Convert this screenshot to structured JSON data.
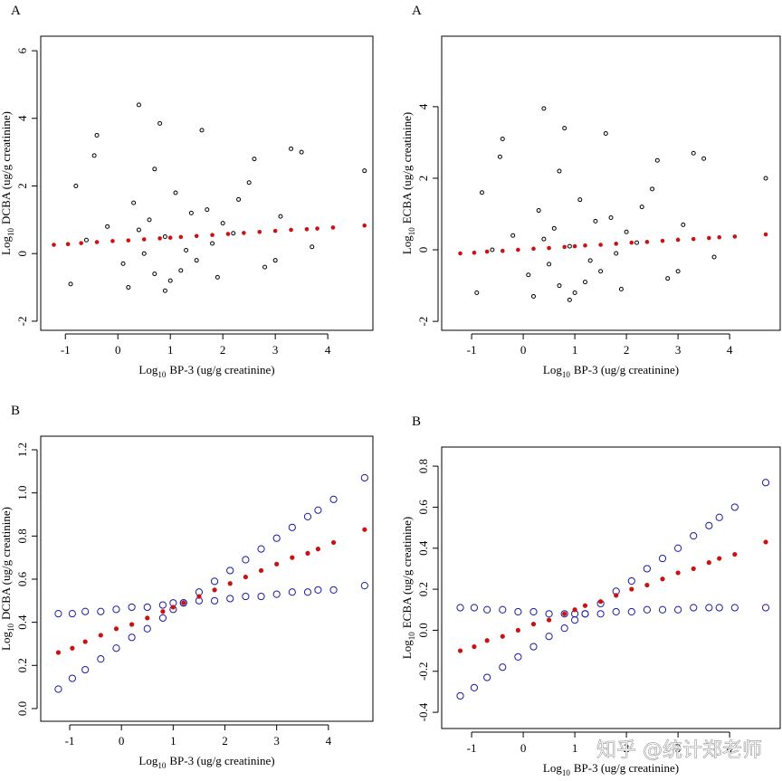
{
  "chart_data": [
    {
      "type": "scatter",
      "panel_label": "A",
      "xlabel": [
        "Log",
        "10",
        "BP-3 (ug/g creatinine)"
      ],
      "ylabel": [
        "Log",
        "10",
        "DCBA (ug/g creatinine)"
      ],
      "xlim": [
        -1.47,
        4.86
      ],
      "ylim": [
        -2.27,
        6.43
      ],
      "xticks": [
        -1,
        0,
        1,
        2,
        3,
        4
      ],
      "yticks": [
        -2,
        0,
        2,
        4,
        6
      ],
      "series": [
        {
          "color": "#000000",
          "marker": "open",
          "x": [
            0.4,
            0.8,
            0.7,
            -0.4,
            -0.45,
            1.6,
            2.6,
            3.3,
            3.5,
            4.7,
            -0.8,
            0.3,
            1.1,
            1.4,
            2.0,
            2.3,
            0.9,
            0.5,
            1.2,
            1.8,
            0.1,
            -0.2,
            0.6,
            1.0,
            1.5,
            2.2,
            2.8,
            3.1,
            3.7,
            -0.9,
            -0.6,
            0.2,
            0.7,
            1.3,
            1.9,
            2.5,
            3.0,
            0.4,
            1.7,
            0.9
          ],
          "values": [
            4.4,
            3.85,
            2.5,
            3.5,
            2.9,
            3.65,
            2.8,
            3.1,
            3.0,
            2.45,
            2.0,
            1.5,
            1.8,
            1.2,
            0.9,
            1.6,
            0.5,
            0.0,
            -0.5,
            0.3,
            -0.3,
            0.8,
            1.0,
            -0.8,
            -0.2,
            0.6,
            -0.4,
            1.1,
            0.2,
            -0.9,
            0.4,
            -1.0,
            -0.6,
            0.1,
            -0.7,
            2.1,
            -0.2,
            0.7,
            1.3,
            -1.1
          ]
        },
        {
          "color": "#cc1111",
          "marker": "filled",
          "x": [
            -1.22,
            -0.95,
            -0.7,
            -0.4,
            -0.1,
            0.2,
            0.5,
            0.8,
            1.0,
            1.2,
            1.5,
            1.8,
            2.1,
            2.4,
            2.7,
            3.0,
            3.3,
            3.6,
            3.8,
            4.1,
            4.7
          ],
          "values": [
            0.26,
            0.28,
            0.31,
            0.34,
            0.37,
            0.39,
            0.42,
            0.45,
            0.47,
            0.49,
            0.52,
            0.55,
            0.58,
            0.61,
            0.64,
            0.67,
            0.7,
            0.72,
            0.74,
            0.77,
            0.83
          ]
        }
      ]
    },
    {
      "type": "scatter",
      "panel_label": "A",
      "xlabel": [
        "Log",
        "10",
        "BP-3 (ug/g creatinine)"
      ],
      "ylabel": [
        "Log",
        "10",
        "ECBA (ug/g creatinine)"
      ],
      "xlim": [
        -1.58,
        4.98
      ],
      "ylim": [
        -2.25,
        5.97
      ],
      "xticks": [
        -1,
        0,
        1,
        2,
        3,
        4
      ],
      "yticks": [
        -2,
        0,
        2,
        4
      ],
      "series": [
        {
          "color": "#000000",
          "marker": "open",
          "x": [
            0.4,
            0.8,
            0.7,
            -0.4,
            -0.45,
            1.6,
            2.6,
            3.3,
            3.5,
            4.7,
            -0.8,
            0.3,
            1.1,
            1.4,
            2.0,
            2.3,
            0.9,
            0.5,
            1.2,
            1.8,
            0.1,
            -0.2,
            0.6,
            1.0,
            1.5,
            2.2,
            2.8,
            3.1,
            3.7,
            -0.9,
            -0.6,
            0.2,
            0.7,
            1.3,
            1.9,
            2.5,
            3.0,
            0.4,
            1.7,
            0.9
          ],
          "values": [
            3.95,
            3.4,
            2.2,
            3.1,
            2.6,
            3.25,
            2.5,
            2.7,
            2.55,
            2.0,
            1.6,
            1.1,
            1.4,
            0.8,
            0.5,
            1.2,
            0.1,
            -0.4,
            -0.9,
            -0.1,
            -0.7,
            0.4,
            0.6,
            -1.2,
            -0.6,
            0.2,
            -0.8,
            0.7,
            -0.2,
            -1.2,
            0.0,
            -1.3,
            -1.0,
            -0.3,
            -1.1,
            1.7,
            -0.6,
            0.3,
            0.9,
            -1.4
          ]
        },
        {
          "color": "#cc1111",
          "marker": "filled",
          "x": [
            -1.22,
            -0.95,
            -0.7,
            -0.4,
            -0.1,
            0.2,
            0.5,
            0.8,
            1.0,
            1.2,
            1.5,
            1.8,
            2.1,
            2.4,
            2.7,
            3.0,
            3.3,
            3.6,
            3.8,
            4.1,
            4.7
          ],
          "values": [
            -0.1,
            -0.08,
            -0.05,
            -0.03,
            0.0,
            0.03,
            0.05,
            0.08,
            0.1,
            0.12,
            0.14,
            0.17,
            0.2,
            0.22,
            0.25,
            0.28,
            0.3,
            0.33,
            0.35,
            0.37,
            0.43
          ]
        }
      ]
    },
    {
      "type": "scatter",
      "panel_label": "B",
      "xlabel": [
        "Log",
        "10",
        "BP-3 (ug/g creatinine)"
      ],
      "ylabel": [
        "Log",
        "10",
        "DCBA (ug/g creatinine)"
      ],
      "xlim": [
        -1.56,
        4.86
      ],
      "ylim": [
        -0.059,
        1.263
      ],
      "xticks": [
        -1,
        0,
        1,
        2,
        3,
        4
      ],
      "yticks": [
        {
          "value": 0,
          "label": "0.0"
        },
        0.2,
        0.4,
        0.6,
        0.8,
        {
          "value": 1,
          "label": "1.0"
        },
        1.2
      ],
      "series": [
        {
          "color": "#1a1aa6",
          "marker": "open",
          "x": [
            -1.22,
            -0.95,
            -0.7,
            -0.4,
            -0.1,
            0.2,
            0.5,
            0.8,
            1.0,
            1.2,
            1.5,
            1.8,
            2.1,
            2.4,
            2.7,
            3.0,
            3.3,
            3.6,
            3.8,
            4.1,
            4.7
          ],
          "values": [
            0.09,
            0.14,
            0.18,
            0.23,
            0.28,
            0.33,
            0.37,
            0.42,
            0.46,
            0.49,
            0.54,
            0.59,
            0.64,
            0.69,
            0.74,
            0.79,
            0.84,
            0.89,
            0.92,
            0.97,
            1.07
          ]
        },
        {
          "color": "#1a1aa6",
          "marker": "open",
          "x": [
            -1.22,
            -0.95,
            -0.7,
            -0.4,
            -0.1,
            0.2,
            0.5,
            0.8,
            1.0,
            1.2,
            1.5,
            1.8,
            2.1,
            2.4,
            2.7,
            3.0,
            3.3,
            3.6,
            3.8,
            4.1,
            4.7
          ],
          "values": [
            0.44,
            0.44,
            0.45,
            0.45,
            0.46,
            0.47,
            0.47,
            0.48,
            0.49,
            0.49,
            0.5,
            0.5,
            0.51,
            0.52,
            0.52,
            0.53,
            0.54,
            0.54,
            0.55,
            0.55,
            0.57
          ]
        },
        {
          "color": "#cc1111",
          "marker": "filled",
          "x": [
            -1.22,
            -0.95,
            -0.7,
            -0.4,
            -0.1,
            0.2,
            0.5,
            0.8,
            1.0,
            1.2,
            1.5,
            1.8,
            2.1,
            2.4,
            2.7,
            3.0,
            3.3,
            3.6,
            3.8,
            4.1,
            4.7
          ],
          "values": [
            0.26,
            0.28,
            0.31,
            0.34,
            0.37,
            0.39,
            0.42,
            0.45,
            0.47,
            0.49,
            0.52,
            0.55,
            0.58,
            0.61,
            0.64,
            0.67,
            0.7,
            0.72,
            0.74,
            0.77,
            0.83
          ]
        }
      ]
    },
    {
      "type": "scatter",
      "panel_label": "B",
      "xlabel": [
        "Log",
        "10",
        "BP-3 (ug/g creatinine)"
      ],
      "ylabel": [
        "Log",
        "10",
        "ECBA (ug/g creatinine)"
      ],
      "xlim": [
        -1.58,
        4.98
      ],
      "ylim": [
        -0.479,
        0.893
      ],
      "xticks": [
        -1,
        0,
        1,
        2,
        3,
        4
      ],
      "yticks": [
        -0.4,
        -0.2,
        {
          "value": 0,
          "label": "0.0"
        },
        0.2,
        0.4,
        0.6,
        0.8
      ],
      "series": [
        {
          "color": "#1a1aa6",
          "marker": "open",
          "x": [
            -1.22,
            -0.95,
            -0.7,
            -0.4,
            -0.1,
            0.2,
            0.5,
            0.8,
            1.0,
            1.2,
            1.5,
            1.8,
            2.1,
            2.4,
            2.7,
            3.0,
            3.3,
            3.6,
            3.8,
            4.1,
            4.7
          ],
          "values": [
            -0.32,
            -0.28,
            -0.23,
            -0.18,
            -0.13,
            -0.08,
            -0.03,
            0.01,
            0.05,
            0.08,
            0.13,
            0.19,
            0.24,
            0.3,
            0.35,
            0.4,
            0.46,
            0.51,
            0.55,
            0.6,
            0.72
          ]
        },
        {
          "color": "#1a1aa6",
          "marker": "open",
          "x": [
            -1.22,
            -0.95,
            -0.7,
            -0.4,
            -0.1,
            0.2,
            0.5,
            0.8,
            1.0,
            1.2,
            1.5,
            1.8,
            2.1,
            2.4,
            2.7,
            3.0,
            3.3,
            3.6,
            3.8,
            4.1,
            4.7
          ],
          "values": [
            0.11,
            0.11,
            0.1,
            0.1,
            0.09,
            0.09,
            0.08,
            0.08,
            0.08,
            0.08,
            0.08,
            0.09,
            0.09,
            0.1,
            0.1,
            0.1,
            0.11,
            0.11,
            0.11,
            0.11,
            0.11
          ]
        },
        {
          "color": "#cc1111",
          "marker": "filled",
          "x": [
            -1.22,
            -0.95,
            -0.7,
            -0.4,
            -0.1,
            0.2,
            0.5,
            0.8,
            1.0,
            1.2,
            1.5,
            1.8,
            2.1,
            2.4,
            2.7,
            3.0,
            3.3,
            3.6,
            3.8,
            4.1,
            4.7
          ],
          "values": [
            -0.1,
            -0.08,
            -0.05,
            -0.03,
            0.0,
            0.03,
            0.05,
            0.08,
            0.1,
            0.12,
            0.14,
            0.17,
            0.2,
            0.22,
            0.25,
            0.28,
            0.3,
            0.33,
            0.35,
            0.37,
            0.43
          ]
        }
      ]
    }
  ],
  "watermark": "知乎 @统计郑老师"
}
